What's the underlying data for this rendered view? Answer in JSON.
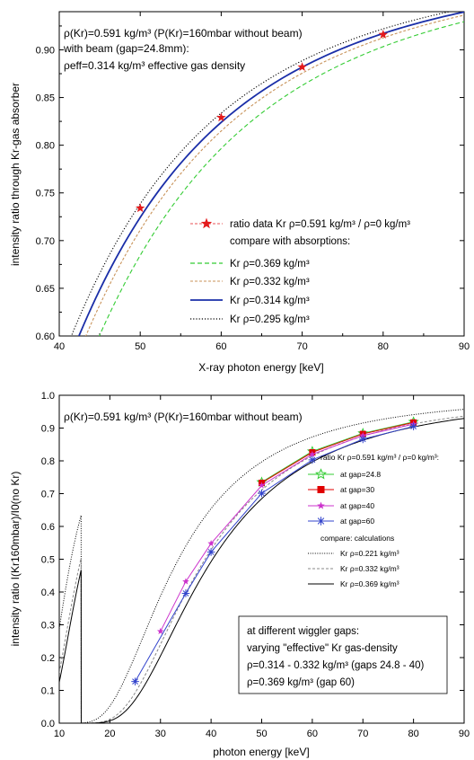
{
  "chart_data": [
    {
      "type": "line",
      "xlabel": "X-ray photon energy [keV]",
      "ylabel": "intensity ratio through Kr-gas absorber",
      "xlim": [
        40,
        90
      ],
      "ylim": [
        0.6,
        0.94
      ],
      "xticks": [
        40,
        50,
        60,
        70,
        80,
        90
      ],
      "xtick_labels": [
        "40",
        "50",
        "60",
        "70",
        "80",
        "90"
      ],
      "yticks": [
        0.6,
        0.65,
        0.7,
        0.75,
        0.8,
        0.85,
        0.9
      ],
      "ytick_labels": [
        "0.60",
        "0.65",
        "0.70",
        "0.75",
        "0.80",
        "0.85",
        "0.90"
      ],
      "annotation_lines": [
        "ρ(Kr)=0.591 kg/m³ (P(Kr)=160mbar without beam)",
        "with beam (gap=24.8mm):",
        "ρeff=0.314 kg/m³ effective gas density"
      ],
      "legend_position": "lower-right",
      "legend_header": "compare with absorptions:",
      "data_series": {
        "name": "ratio data Kr ρ=0.591 kg/m³ / ρ=0 kg/m³",
        "color": "#e31a1c",
        "x": [
          50,
          60,
          70,
          80
        ],
        "y": [
          0.734,
          0.829,
          0.882,
          0.916
        ]
      },
      "curves": [
        {
          "name": "Kr ρ=0.369 kg/m³",
          "color": "#33cc33",
          "style": "dashed",
          "rho": 0.369
        },
        {
          "name": "Kr ρ=0.332 kg/m³",
          "color": "#c8935a",
          "style": "dash-short",
          "rho": 0.332
        },
        {
          "name": "Kr ρ=0.314 kg/m³",
          "color": "#1a2ea8",
          "style": "solid",
          "rho": 0.314
        },
        {
          "name": "Kr ρ=0.295 kg/m³",
          "color": "#000000",
          "style": "dotted",
          "rho": 0.295
        }
      ]
    },
    {
      "type": "line",
      "xlabel": "photon energy [keV]",
      "ylabel": "intensity ratio I(Kr160mbar)/I0(no Kr)",
      "xlim": [
        10,
        90
      ],
      "ylim": [
        0,
        1.0
      ],
      "xticks": [
        10,
        20,
        30,
        40,
        50,
        60,
        70,
        80,
        90
      ],
      "xtick_labels": [
        "10",
        "20",
        "30",
        "40",
        "50",
        "60",
        "70",
        "80",
        "90"
      ],
      "yticks": [
        0,
        0.1,
        0.2,
        0.3,
        0.4,
        0.5,
        0.6,
        0.7,
        0.8,
        0.9,
        1.0
      ],
      "ytick_labels": [
        "0.0",
        "0.1",
        "0.2",
        "0.3",
        "0.4",
        "0.5",
        "0.6",
        "0.7",
        "0.8",
        "0.9",
        "1.0"
      ],
      "annotation": "ρ(Kr)=0.591 kg/m³ (P(Kr)=160mbar without beam)",
      "legend_position": "right",
      "legend_header": "ratio Kr ρ=0.591 kg/m³ / ρ=0 kg/m³:",
      "legend_compare": "compare: calculations",
      "series": [
        {
          "name": "at gap=24.8",
          "color": "#33cc33",
          "marker": "star-open",
          "x": [
            50,
            60,
            70,
            80
          ],
          "y": [
            0.735,
            0.829,
            0.884,
            0.919
          ]
        },
        {
          "name": "at gap=30",
          "color": "#e00000",
          "marker": "square",
          "x": [
            50,
            60,
            70,
            80
          ],
          "y": [
            0.733,
            0.826,
            0.882,
            0.917
          ]
        },
        {
          "name": "at gap=40",
          "color": "#cc33cc",
          "marker": "star",
          "x": [
            30,
            35,
            40,
            50,
            60,
            70,
            80
          ],
          "y": [
            0.28,
            0.432,
            0.548,
            0.725,
            0.82,
            0.877,
            0.912
          ]
        },
        {
          "name": "at gap=60",
          "color": "#3344cc",
          "marker": "asterisk",
          "x": [
            25,
            35,
            40,
            50,
            60,
            70,
            80
          ],
          "y": [
            0.127,
            0.396,
            0.522,
            0.701,
            0.803,
            0.866,
            0.905
          ]
        }
      ],
      "curves": [
        {
          "name": "Kr ρ=0.221 kg/m³",
          "color": "#000000",
          "style": "dotted",
          "rho": 0.221
        },
        {
          "name": "Kr ρ=0.332 kg/m³",
          "color": "#888888",
          "style": "dashed",
          "rho": 0.332
        },
        {
          "name": "Kr ρ=0.369 kg/m³",
          "color": "#000000",
          "style": "solid",
          "rho": 0.369
        }
      ],
      "note_lines": [
        "at different wiggler gaps:",
        "varying \"effective\" Kr gas-density",
        "ρ=0.314 - 0.332 kg/m³ (gaps 24.8 - 40)",
        "ρ=0.369 kg/m³ (gap 60)"
      ]
    }
  ]
}
